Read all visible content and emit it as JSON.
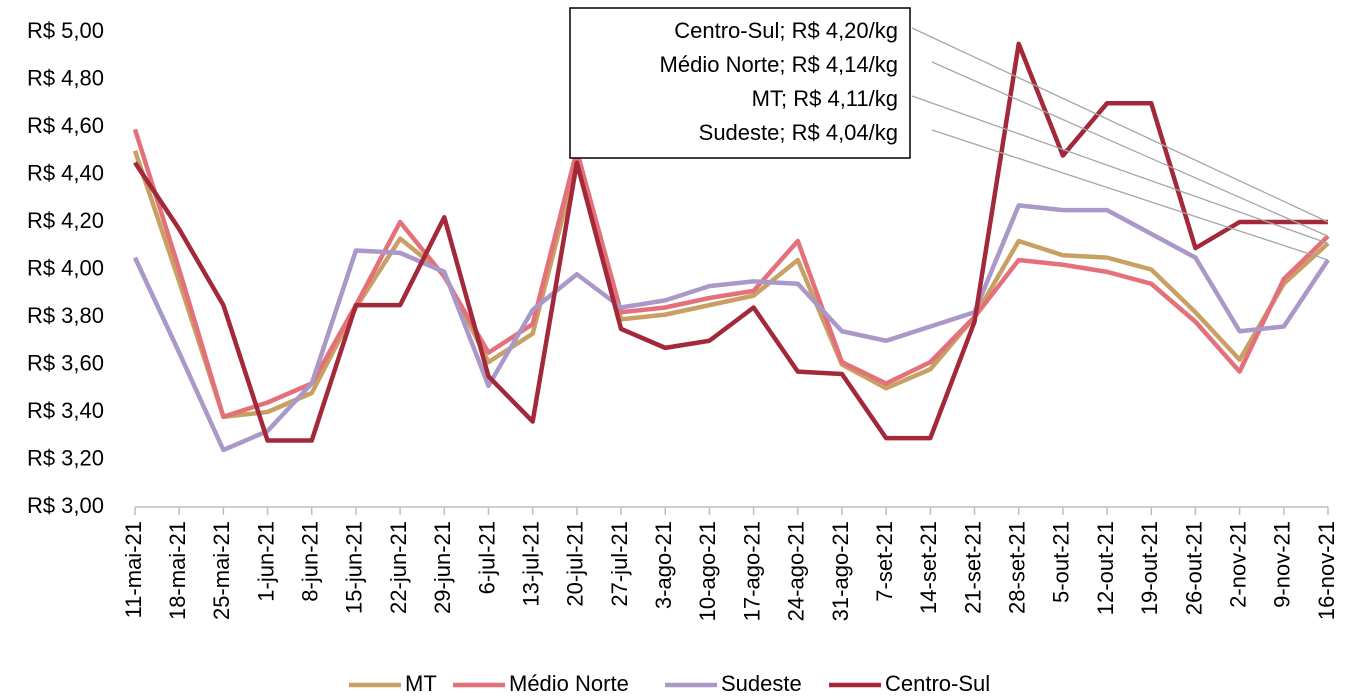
{
  "chart_data": {
    "type": "line",
    "categories": [
      "11-mai-21",
      "18-mai-21",
      "25-mai-21",
      "1-jun-21",
      "8-jun-21",
      "15-jun-21",
      "22-jun-21",
      "29-jun-21",
      "6-jul-21",
      "13-jul-21",
      "20-jul-21",
      "27-jul-21",
      "3-ago-21",
      "10-ago-21",
      "17-ago-21",
      "24-ago-21",
      "31-ago-21",
      "7-set-21",
      "14-set-21",
      "21-set-21",
      "28-set-21",
      "5-out-21",
      "12-out-21",
      "19-out-21",
      "26-out-21",
      "2-nov-21",
      "9-nov-21",
      "16-nov-21"
    ],
    "series": [
      {
        "name": "MT",
        "color": "#c8a064",
        "values": [
          4.5,
          3.95,
          3.38,
          3.4,
          3.48,
          3.84,
          4.13,
          3.98,
          3.61,
          3.73,
          4.45,
          3.79,
          3.81,
          3.85,
          3.89,
          4.04,
          3.6,
          3.5,
          3.58,
          3.8,
          4.12,
          4.06,
          4.05,
          4.0,
          3.82,
          3.62,
          3.94,
          4.11
        ]
      },
      {
        "name": "Médio Norte",
        "color": "#e4707a",
        "values": [
          4.59,
          4.0,
          3.38,
          3.44,
          3.52,
          3.85,
          4.2,
          3.97,
          3.65,
          3.77,
          4.5,
          3.82,
          3.84,
          3.88,
          3.91,
          4.12,
          3.61,
          3.52,
          3.61,
          3.8,
          4.04,
          4.02,
          3.99,
          3.94,
          3.78,
          3.57,
          3.96,
          4.14
        ]
      },
      {
        "name": "Sudeste",
        "color": "#a998c8",
        "values": [
          4.05,
          3.65,
          3.24,
          3.32,
          3.52,
          4.08,
          4.07,
          3.99,
          3.51,
          3.83,
          3.98,
          3.84,
          3.87,
          3.93,
          3.95,
          3.94,
          3.74,
          3.7,
          3.76,
          3.82,
          4.27,
          4.25,
          4.25,
          4.15,
          4.05,
          3.74,
          3.76,
          4.04
        ]
      },
      {
        "name": "Centro-Sul",
        "color": "#a3283a",
        "values": [
          4.45,
          4.17,
          3.85,
          3.28,
          3.28,
          3.85,
          3.85,
          4.22,
          3.55,
          3.36,
          4.45,
          3.75,
          3.67,
          3.7,
          3.84,
          3.57,
          3.56,
          3.29,
          3.29,
          3.78,
          4.95,
          4.48,
          4.7,
          4.7,
          4.09,
          4.2,
          4.2,
          4.2
        ]
      }
    ],
    "ylim": [
      3.0,
      5.0
    ],
    "yticks": [
      {
        "value": 3.0,
        "label": "R$ 3,00"
      },
      {
        "value": 3.2,
        "label": "R$ 3,20"
      },
      {
        "value": 3.4,
        "label": "R$ 3,40"
      },
      {
        "value": 3.6,
        "label": "R$ 3,60"
      },
      {
        "value": 3.8,
        "label": "R$ 3,80"
      },
      {
        "value": 4.0,
        "label": "R$ 4,00"
      },
      {
        "value": 4.2,
        "label": "R$ 4,20"
      },
      {
        "value": 4.4,
        "label": "R$ 4,40"
      },
      {
        "value": 4.6,
        "label": "R$ 4,60"
      },
      {
        "value": 4.8,
        "label": "R$ 4,80"
      },
      {
        "value": 5.0,
        "label": "R$ 5,00"
      }
    ],
    "annotations": [
      "Centro-Sul; R$ 4,20/kg",
      "Médio Norte; R$ 4,14/kg",
      "MT; R$ 4,11/kg",
      "Sudeste; R$ 4,04/kg"
    ],
    "legend": "bottom"
  }
}
